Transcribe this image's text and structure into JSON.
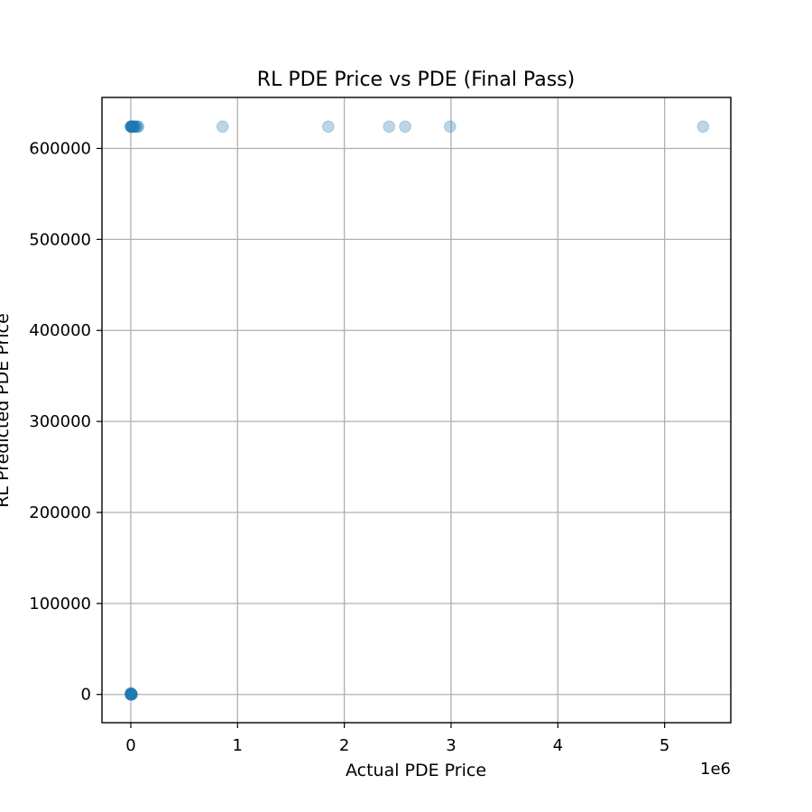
{
  "chart_data": {
    "type": "scatter",
    "title": "RL PDE Price vs PDE (Final Pass)",
    "xlabel": "Actual PDE Price",
    "ylabel": "RL Predicted PDE Price",
    "x_offset_label": "1e6",
    "x_tick_labels": [
      "0",
      "1",
      "2",
      "3",
      "4",
      "5"
    ],
    "x_ticks": [
      0,
      1000000,
      2000000,
      3000000,
      4000000,
      5000000
    ],
    "y_tick_labels": [
      "0",
      "100000",
      "200000",
      "300000",
      "400000",
      "500000",
      "600000"
    ],
    "y_ticks": [
      0,
      100000,
      200000,
      300000,
      400000,
      500000,
      600000
    ],
    "xlim": [
      -270000,
      5620000
    ],
    "ylim": [
      -31000,
      656000
    ],
    "grid": true,
    "marker_color": "#1f77b4",
    "marker_alpha": 0.3,
    "series": [
      {
        "values": [
          {
            "x": 0,
            "y": 0
          },
          {
            "x": 1000,
            "y": 0
          },
          {
            "x": 2000,
            "y": 0
          },
          {
            "x": 3000,
            "y": 0
          },
          {
            "x": 5000,
            "y": 0
          },
          {
            "x": 7000,
            "y": 0
          },
          {
            "x": 10000,
            "y": 0
          },
          {
            "x": 500,
            "y": 1000
          },
          {
            "x": 1500,
            "y": 1500
          },
          {
            "x": 4000,
            "y": 500
          },
          {
            "x": 0,
            "y": 624000
          },
          {
            "x": 2000,
            "y": 624000
          },
          {
            "x": 4000,
            "y": 624000
          },
          {
            "x": 6000,
            "y": 624000
          },
          {
            "x": 9000,
            "y": 624000
          },
          {
            "x": 12000,
            "y": 624000
          },
          {
            "x": 15000,
            "y": 624000
          },
          {
            "x": 20000,
            "y": 624000
          },
          {
            "x": 25000,
            "y": 624000
          },
          {
            "x": 30000,
            "y": 624000
          },
          {
            "x": 40000,
            "y": 624000
          },
          {
            "x": 50000,
            "y": 624000
          },
          {
            "x": 60000,
            "y": 624000
          },
          {
            "x": 70000,
            "y": 624000
          },
          {
            "x": 860000,
            "y": 624000
          },
          {
            "x": 1850000,
            "y": 624000
          },
          {
            "x": 2420000,
            "y": 624000
          },
          {
            "x": 2570000,
            "y": 624000
          },
          {
            "x": 2990000,
            "y": 624000
          },
          {
            "x": 5360000,
            "y": 624000
          }
        ]
      }
    ]
  }
}
